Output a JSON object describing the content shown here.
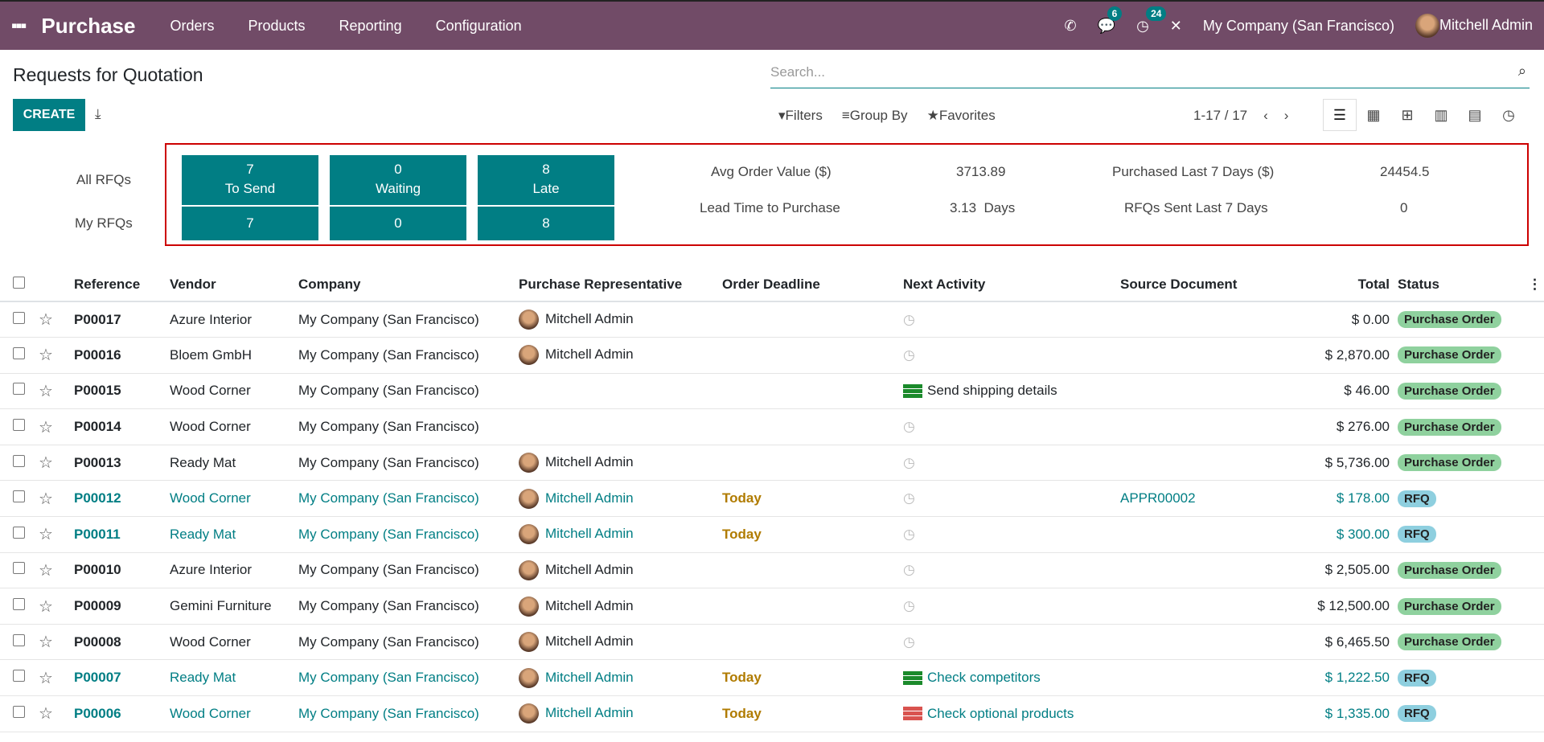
{
  "nav": {
    "app": "Purchase",
    "menus": [
      "Orders",
      "Products",
      "Reporting",
      "Configuration"
    ],
    "messages": "6",
    "activities": "24",
    "company": "My Company (San Francisco)",
    "user": "Mitchell Admin"
  },
  "page": {
    "title": "Requests for Quotation",
    "search_placeholder": "Search...",
    "create": "CREATE",
    "filters": "Filters",
    "group_by": "Group By",
    "favorites": "Favorites",
    "pager": "1-17 / 17"
  },
  "dash": {
    "all": "All RFQs",
    "my": "My RFQs",
    "tiles": [
      {
        "v": "7",
        "l": "To Send",
        "my": "7"
      },
      {
        "v": "0",
        "l": "Waiting",
        "my": "0"
      },
      {
        "v": "8",
        "l": "Late",
        "my": "8"
      }
    ],
    "kpis": [
      {
        "l": "Avg Order Value ($)",
        "v": "3713.89"
      },
      {
        "l": "Lead Time to Purchase",
        "v": "3.13  Days"
      },
      {
        "l": "Purchased Last 7 Days ($)",
        "v": "24454.5"
      },
      {
        "l": "RFQs Sent Last 7 Days",
        "v": "0"
      }
    ]
  },
  "columns": [
    "Reference",
    "Vendor",
    "Company",
    "Purchase Representative",
    "Order Deadline",
    "Next Activity",
    "Source Document",
    "Total",
    "Status"
  ],
  "rows": [
    {
      "ref": "P00017",
      "vendor": "Azure Interior",
      "company": "My Company (San Francisco)",
      "rep": "Mitchell Admin",
      "deadline": "",
      "activity": "",
      "source": "",
      "total": "$ 0.00",
      "status": "Purchase Order"
    },
    {
      "ref": "P00016",
      "vendor": "Bloem GmbH",
      "company": "My Company (San Francisco)",
      "rep": "Mitchell Admin",
      "deadline": "",
      "activity": "",
      "source": "",
      "total": "$ 2,870.00",
      "status": "Purchase Order"
    },
    {
      "ref": "P00015",
      "vendor": "Wood Corner",
      "company": "My Company (San Francisco)",
      "rep": "",
      "deadline": "",
      "activity": "Send shipping details",
      "source": "",
      "total": "$ 46.00",
      "status": "Purchase Order"
    },
    {
      "ref": "P00014",
      "vendor": "Wood Corner",
      "company": "My Company (San Francisco)",
      "rep": "",
      "deadline": "",
      "activity": "",
      "source": "",
      "total": "$ 276.00",
      "status": "Purchase Order"
    },
    {
      "ref": "P00013",
      "vendor": "Ready Mat",
      "company": "My Company (San Francisco)",
      "rep": "Mitchell Admin",
      "deadline": "",
      "activity": "",
      "source": "",
      "total": "$ 5,736.00",
      "status": "Purchase Order"
    },
    {
      "ref": "P00012",
      "vendor": "Wood Corner",
      "company": "My Company (San Francisco)",
      "rep": "Mitchell Admin",
      "deadline": "Today",
      "activity": "",
      "source": "APPR00002",
      "total": "$ 178.00",
      "status": "RFQ"
    },
    {
      "ref": "P00011",
      "vendor": "Ready Mat",
      "company": "My Company (San Francisco)",
      "rep": "Mitchell Admin",
      "deadline": "Today",
      "activity": "",
      "source": "",
      "total": "$ 300.00",
      "status": "RFQ"
    },
    {
      "ref": "P00010",
      "vendor": "Azure Interior",
      "company": "My Company (San Francisco)",
      "rep": "Mitchell Admin",
      "deadline": "",
      "activity": "",
      "source": "",
      "total": "$ 2,505.00",
      "status": "Purchase Order"
    },
    {
      "ref": "P00009",
      "vendor": "Gemini Furniture",
      "company": "My Company (San Francisco)",
      "rep": "Mitchell Admin",
      "deadline": "",
      "activity": "",
      "source": "",
      "total": "$ 12,500.00",
      "status": "Purchase Order"
    },
    {
      "ref": "P00008",
      "vendor": "Wood Corner",
      "company": "My Company (San Francisco)",
      "rep": "Mitchell Admin",
      "deadline": "",
      "activity": "",
      "source": "",
      "total": "$ 6,465.50",
      "status": "Purchase Order"
    },
    {
      "ref": "P00007",
      "vendor": "Ready Mat",
      "company": "My Company (San Francisco)",
      "rep": "Mitchell Admin",
      "deadline": "Today",
      "activity": "Check competitors",
      "source": "",
      "total": "$ 1,222.50",
      "status": "RFQ"
    },
    {
      "ref": "P00006",
      "vendor": "Wood Corner",
      "company": "My Company (San Francisco)",
      "rep": "Mitchell Admin",
      "deadline": "Today",
      "activity": "Check optional products",
      "source": "",
      "total": "$ 1,335.00",
      "status": "RFQ",
      "late": true
    }
  ]
}
